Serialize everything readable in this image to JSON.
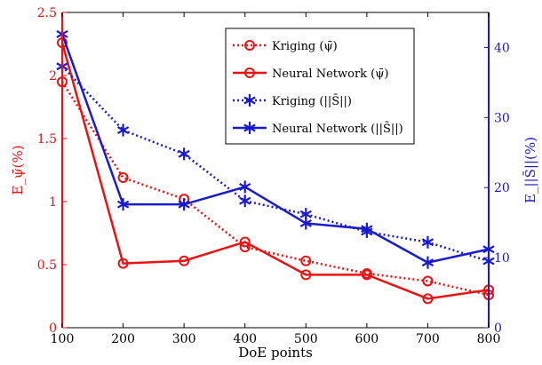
{
  "chart_data": {
    "type": "line",
    "x": [
      100,
      200,
      300,
      400,
      500,
      600,
      700,
      800
    ],
    "xlabel": "DoE points",
    "xlim": [
      100,
      800
    ],
    "xticks": [
      100,
      200,
      300,
      400,
      500,
      600,
      700,
      800
    ],
    "ylabel_left": "E_ψ̄(%)",
    "ylabel_right": "E_||S̄||(%)",
    "ylim_left": [
      0,
      2.5
    ],
    "yticks_left": [
      "0",
      "0.5",
      "1",
      "1.5",
      "2",
      "2.5"
    ],
    "ylim_right": [
      0,
      45
    ],
    "yticks_right": [
      "0",
      "10",
      "20",
      "30",
      "40"
    ],
    "grid": false,
    "legend_position": "top-right",
    "colors": {
      "left_axis": "#ee1111",
      "right_axis": "#1a1ad0"
    },
    "series": [
      {
        "name": "Kriging (ψ̄)",
        "axis": "left",
        "style": "dotted",
        "marker": "circle",
        "color": "#ee1111",
        "values": [
          1.95,
          1.19,
          1.02,
          0.64,
          0.53,
          0.43,
          0.37,
          0.26
        ]
      },
      {
        "name": "Neural Network (ψ̄)",
        "axis": "left",
        "style": "solid",
        "marker": "circle",
        "color": "#ee1111",
        "values": [
          2.26,
          0.51,
          0.53,
          0.68,
          0.42,
          0.42,
          0.23,
          0.3
        ]
      },
      {
        "name": "Kriging (||S̄||)",
        "axis": "right",
        "style": "dotted",
        "marker": "asterisk",
        "color": "#1a1ad0",
        "values": [
          37.3,
          28.2,
          24.8,
          18.1,
          16.2,
          13.7,
          12.2,
          9.5
        ]
      },
      {
        "name": "Neural Network (||S̄||)",
        "axis": "right",
        "style": "solid",
        "marker": "asterisk",
        "color": "#1a1ad0",
        "values": [
          41.9,
          17.6,
          17.6,
          20.1,
          14.9,
          14.1,
          9.3,
          11.2
        ]
      }
    ]
  }
}
